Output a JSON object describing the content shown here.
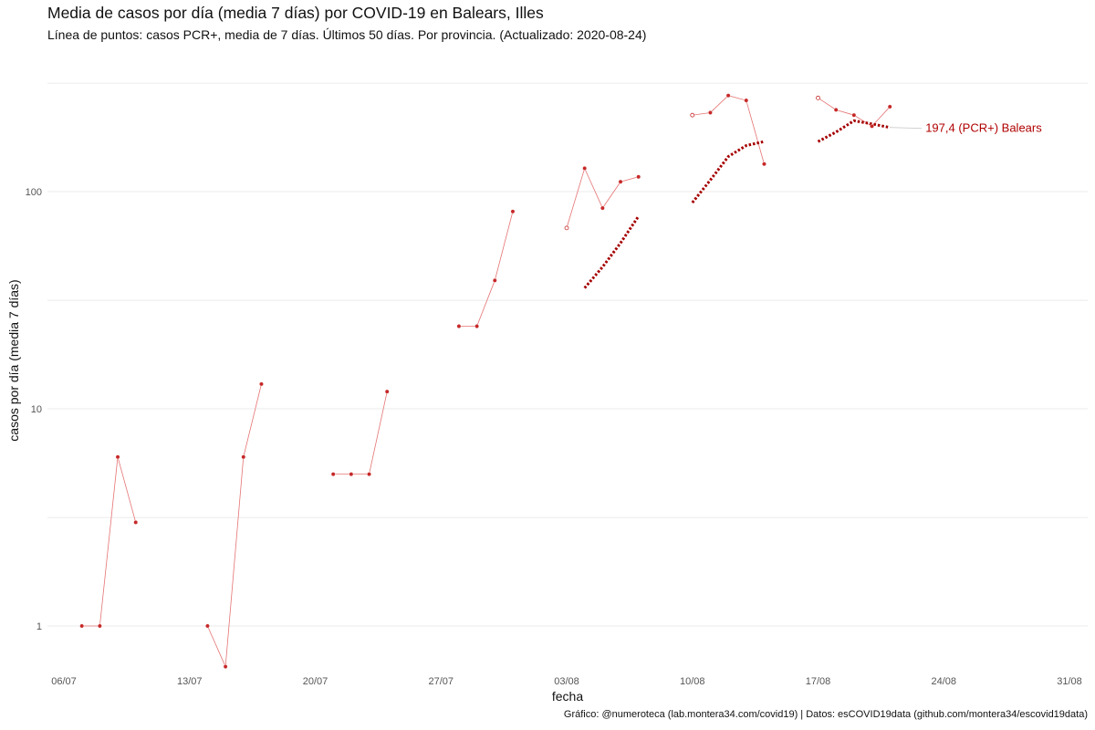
{
  "header": {
    "title": "Media de casos por día (media 7 días) por COVID-19 en Balears, Illes",
    "subtitle": "Línea de puntos: casos PCR+, media de 7 días. Últimos 50 días. Por provincia. (Actualizado: 2020-08-24)"
  },
  "caption": "Gráfico: @numeroteca (lab.montera34.com/covid19) | Datos: esCOVID19data (github.com/montera34/escovid19data)",
  "colors": {
    "series": "#c62828",
    "line": "#e57373",
    "dotted": "#a50000",
    "annotation": "#b00000",
    "grid": "#ebebeb"
  },
  "chart_data": {
    "type": "line",
    "title": "Media de casos por día (media 7 días) por COVID-19 en Balears, Illes",
    "xlabel": "fecha",
    "ylabel": "casos por día (media 7 días)",
    "y_scale": "log10",
    "ylim": [
      0.65,
      320
    ],
    "xlim": [
      "2020-07-05",
      "2020-08-31"
    ],
    "x_ticks": [
      {
        "date": "2020-07-06",
        "label": "06/07"
      },
      {
        "date": "2020-07-13",
        "label": "13/07"
      },
      {
        "date": "2020-07-20",
        "label": "20/07"
      },
      {
        "date": "2020-07-27",
        "label": "27/07"
      },
      {
        "date": "2020-08-03",
        "label": "03/08"
      },
      {
        "date": "2020-08-10",
        "label": "10/08"
      },
      {
        "date": "2020-08-17",
        "label": "17/08"
      },
      {
        "date": "2020-08-24",
        "label": "24/08"
      },
      {
        "date": "2020-08-31",
        "label": "31/08"
      }
    ],
    "y_ticks": [
      {
        "value": 1,
        "label": "1"
      },
      {
        "value": 10,
        "label": "10"
      },
      {
        "value": 100,
        "label": "100"
      }
    ],
    "y_minor_gridlines": [
      3.16,
      31.6,
      316
    ],
    "grid": true,
    "series": [
      {
        "name": "casos por día (media 7 días)",
        "style": "thin-line-with-points",
        "segments": [
          [
            [
              "2020-07-07",
              1
            ],
            [
              "2020-07-08",
              1
            ],
            [
              "2020-07-09",
              6
            ],
            [
              "2020-07-10",
              3
            ]
          ],
          [
            [
              "2020-07-14",
              1
            ],
            [
              "2020-07-15",
              0.65
            ],
            [
              "2020-07-16",
              6
            ],
            [
              "2020-07-17",
              13
            ]
          ],
          [
            [
              "2020-07-21",
              5
            ],
            [
              "2020-07-22",
              5
            ],
            [
              "2020-07-23",
              5
            ],
            [
              "2020-07-24",
              12
            ]
          ],
          [
            [
              "2020-07-28",
              24
            ],
            [
              "2020-07-29",
              24
            ],
            [
              "2020-07-30",
              39
            ],
            [
              "2020-07-31",
              81
            ]
          ],
          [
            [
              "2020-08-03",
              68
            ],
            [
              "2020-08-04",
              128
            ],
            [
              "2020-08-05",
              84
            ],
            [
              "2020-08-06",
              111
            ],
            [
              "2020-08-07",
              117
            ]
          ],
          [
            [
              "2020-08-10",
              225
            ],
            [
              "2020-08-11",
              231
            ],
            [
              "2020-08-12",
              277
            ],
            [
              "2020-08-13",
              263
            ],
            [
              "2020-08-14",
              134
            ]
          ],
          [
            [
              "2020-08-17",
              270
            ],
            [
              "2020-08-18",
              238
            ],
            [
              "2020-08-19",
              225
            ],
            [
              "2020-08-20",
              200
            ],
            [
              "2020-08-21",
              246
            ]
          ]
        ],
        "hollow_points": [
          [
            "2020-08-03",
            68
          ],
          [
            "2020-08-10",
            225
          ],
          [
            "2020-08-17",
            270
          ]
        ]
      },
      {
        "name": "casos PCR+, media de 7 días",
        "style": "dotted",
        "segments": [
          [
            [
              "2020-08-04",
              36
            ],
            [
              "2020-08-05",
              45
            ],
            [
              "2020-08-06",
              58
            ],
            [
              "2020-08-07",
              77
            ]
          ],
          [
            [
              "2020-08-10",
              89
            ],
            [
              "2020-08-11",
              113
            ],
            [
              "2020-08-12",
              145
            ],
            [
              "2020-08-13",
              163
            ],
            [
              "2020-08-14",
              170
            ]
          ],
          [
            [
              "2020-08-17",
              170
            ],
            [
              "2020-08-18",
              188
            ],
            [
              "2020-08-19",
              212
            ],
            [
              "2020-08-20",
              205
            ],
            [
              "2020-08-21",
              197.4
            ]
          ]
        ]
      }
    ],
    "annotations": [
      {
        "text": "197,4 (PCR+) Balears",
        "x": "2020-08-21",
        "y": 197.4
      }
    ]
  }
}
